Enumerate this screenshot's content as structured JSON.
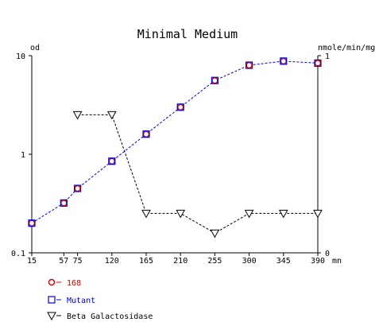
{
  "chart_data": {
    "type": "line",
    "title": "Minimal Medium",
    "ylabel_left": "od",
    "ylabel_right": "nmole/min/mg",
    "xlabel": "mn",
    "x_ticks": [
      15,
      57,
      75,
      120,
      165,
      210,
      255,
      300,
      345,
      390
    ],
    "y_left_ticks": [
      "0.1",
      "1",
      "10"
    ],
    "y_left_ticks_num": [
      0.1,
      1,
      10
    ],
    "y_left_scale": "log",
    "y_left_range": [
      0.1,
      10
    ],
    "y_right_ticks": [
      "0",
      "1"
    ],
    "y_right_ticks_num": [
      0,
      1
    ],
    "y_right_range": [
      0,
      1
    ],
    "xlim": [
      15,
      390
    ],
    "grid": false,
    "legend_position": "bottom-left",
    "series": [
      {
        "name": "168",
        "axis": "left",
        "color": "#dd0000",
        "marker": "circle",
        "x": [
          15,
          57,
          75,
          120,
          165,
          210,
          255,
          300,
          345,
          390
        ],
        "y": [
          0.2,
          0.32,
          0.45,
          0.85,
          1.6,
          3.0,
          5.6,
          8.0,
          8.8,
          8.4
        ]
      },
      {
        "name": "Mutant",
        "axis": "left",
        "color": "#0000cc",
        "marker": "square",
        "line_color": "#0000ff",
        "line_style": "dashed",
        "x": [
          15,
          57,
          75,
          120,
          165,
          210,
          255,
          300,
          345,
          390
        ],
        "y": [
          0.2,
          0.32,
          0.45,
          0.85,
          1.6,
          3.0,
          5.6,
          8.0,
          8.8,
          8.4
        ]
      },
      {
        "name": "Beta Galactosidase",
        "axis": "right",
        "color": "#000000",
        "marker": "triangle-down",
        "line_color": "#000000",
        "line_style": "dashed",
        "x": [
          75,
          120,
          165,
          210,
          255,
          300,
          345,
          390
        ],
        "y": [
          0.7,
          0.7,
          0.2,
          0.2,
          0.1,
          0.2,
          0.2,
          0.2
        ]
      }
    ]
  }
}
